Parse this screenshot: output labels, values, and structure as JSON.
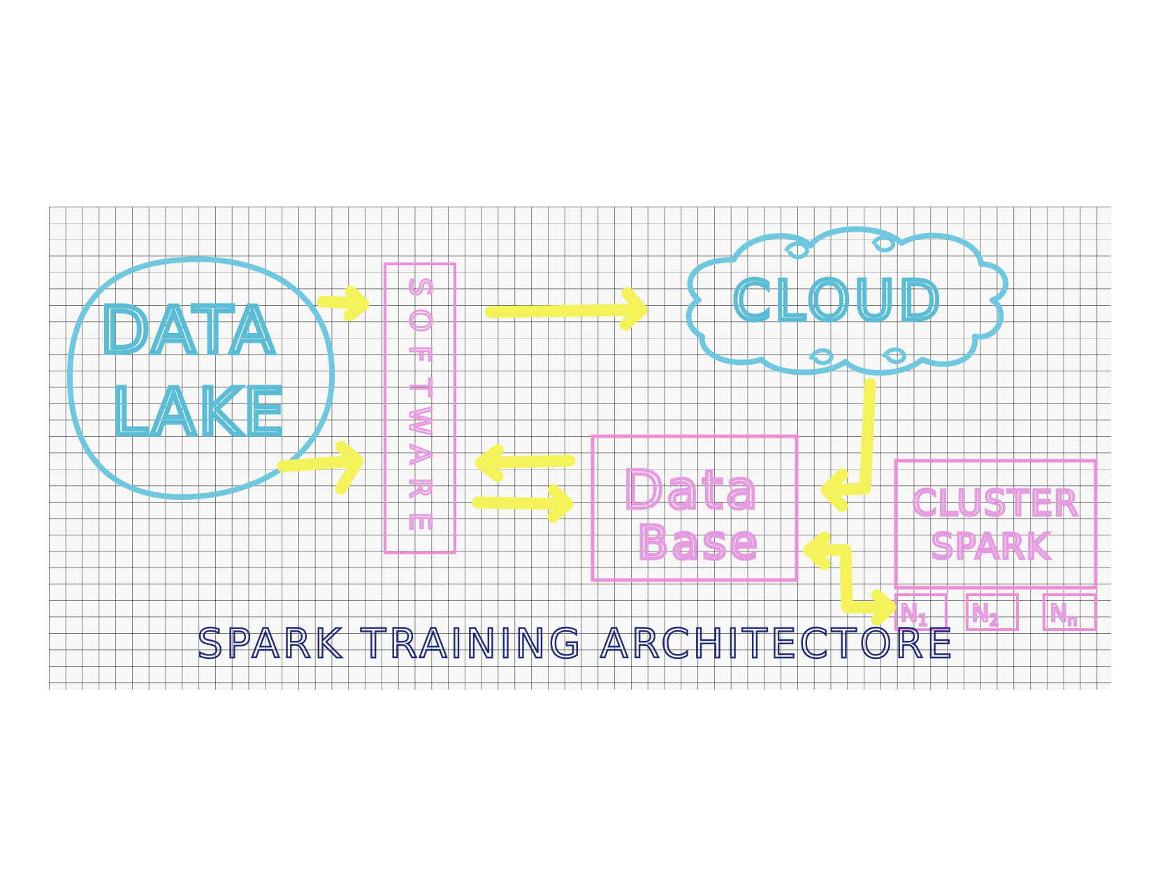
{
  "colors": {
    "paper": "#f7f7f5",
    "grid": "#2e2e2e",
    "blue": "#6fc8df",
    "blue_text": "#5bbcd6",
    "pink": "#ec8fd8",
    "pink_text": "#e59be0",
    "yellow": "#f4f25a",
    "ink": "#1f2a78"
  },
  "nodes": {
    "data_lake": {
      "line1": "DATA",
      "line2": "LAKE"
    },
    "software": {
      "letters": [
        "S",
        "O",
        "F",
        "T",
        "W",
        "A",
        "R",
        "E"
      ]
    },
    "cloud": {
      "label": "CLOUD"
    },
    "database": {
      "line1": "Data",
      "line2": "Base"
    },
    "cluster": {
      "line1": "CLUSTER",
      "line2": "SPARK",
      "nodes": [
        {
          "label": "N",
          "sub": "1"
        },
        {
          "label": "N",
          "sub": "2"
        },
        {
          "label": "N",
          "sub": "n"
        }
      ]
    }
  },
  "caption": "SPARK TRAINING ARCHITECTORE"
}
